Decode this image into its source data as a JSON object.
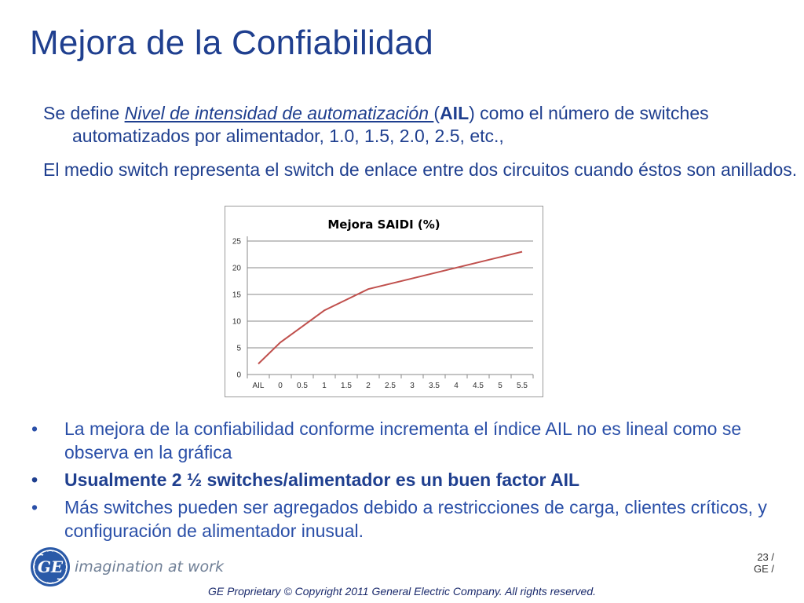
{
  "slide": {
    "title": "Mejora de la Confiabilidad",
    "para1": {
      "pre": "Se define ",
      "underlined": "Nivel de intensidad de automatización ",
      "mid1": "(",
      "bold": "AIL",
      "post": ") como el número de switches automatizados por alimentador, 1.0, 1.5, 2.0, 2.5, etc.,"
    },
    "para2": "El medio switch representa el switch de enlace entre dos circuitos cuando éstos son anillados.",
    "bullets": [
      {
        "text": "La mejora de la confiabilidad conforme incrementa el índice AIL no es lineal como se observa en la gráfica",
        "bold": false
      },
      {
        "text": "Usualmente  2 ½ switches/alimentador es un buen factor AIL",
        "bold": true
      },
      {
        "text": "Más switches pueden  ser agregados debido a restricciones de carga, clientes críticos, y configuración de alimentador inusual.",
        "bold": false
      }
    ],
    "bullet_glyph": "•"
  },
  "chart_data": {
    "type": "line",
    "title": "Mejora SAIDI (%)",
    "categories": [
      "AIL",
      "0",
      "0.5",
      "1",
      "1.5",
      "2",
      "2.5",
      "3",
      "3.5",
      "4",
      "4.5",
      "5",
      "5.5"
    ],
    "series": [
      {
        "values": [
          2,
          6,
          null,
          12,
          null,
          16,
          null,
          null,
          null,
          null,
          null,
          null,
          23
        ]
      }
    ],
    "ylim": [
      0,
      25
    ],
    "yticks": [
      0,
      5,
      10,
      15,
      20,
      25
    ],
    "grid": true,
    "line_color": "#c0504d"
  },
  "branding": {
    "logo_text": "GE",
    "tagline": "imagination at work",
    "page_number": "23 /",
    "page_owner": "GE  /",
    "copyright": "GE Proprietary © Copyright 2011 General Electric Company. All rights reserved.",
    "accent_color": "#1f3f8f",
    "logo_color": "#2a5aa8"
  }
}
